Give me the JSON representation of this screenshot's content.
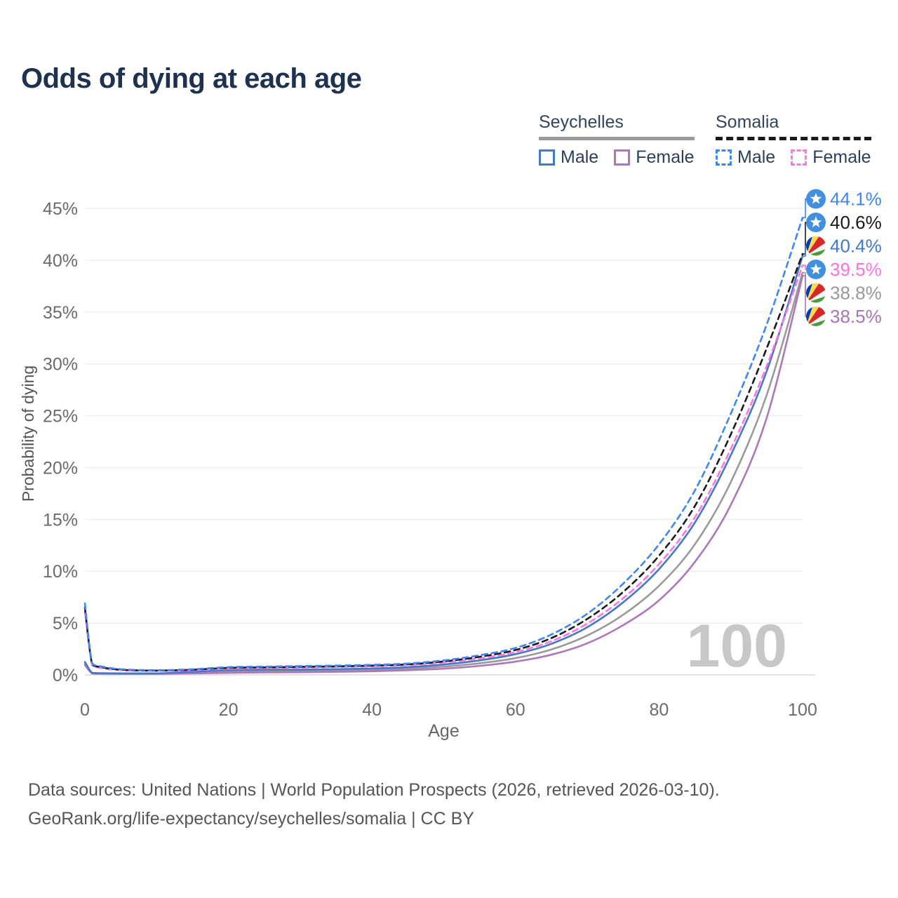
{
  "title": "Odds of dying at each age",
  "legend": {
    "groups": [
      {
        "name": "Seychelles",
        "line_style": "solid",
        "underline_color": "#9a9a9a",
        "items": [
          {
            "label": "Male",
            "color": "#4579c8"
          },
          {
            "label": "Female",
            "color": "#ad76bd"
          }
        ]
      },
      {
        "name": "Somalia",
        "line_style": "dashed",
        "underline_color": "#1a1a1a",
        "items": [
          {
            "label": "Male",
            "color": "#3d87f5"
          },
          {
            "label": "Female",
            "color": "#ff75e3"
          }
        ]
      }
    ]
  },
  "chart_data": {
    "type": "line",
    "title": "Odds of dying at each age",
    "xlabel": "Age",
    "ylabel": "Probability of dying",
    "xlim": [
      0,
      100
    ],
    "ylim": [
      0,
      47
    ],
    "xticks": [
      0,
      20,
      40,
      60,
      80,
      100
    ],
    "yticks": [
      0,
      5,
      10,
      15,
      20,
      25,
      30,
      35,
      40,
      45
    ],
    "ytick_suffix": "%",
    "grid": true,
    "legend_position": "top-right",
    "watermark": "100",
    "x": [
      0,
      1,
      2,
      5,
      10,
      15,
      20,
      25,
      30,
      35,
      40,
      45,
      50,
      55,
      60,
      65,
      70,
      75,
      80,
      85,
      90,
      95,
      100
    ],
    "series": [
      {
        "name": "Seychelles Both sexes",
        "country": "Seychelles",
        "sex": "both",
        "color": "#9a9a9a",
        "dash": "none",
        "values": [
          1.1,
          0.17,
          0.14,
          0.12,
          0.12,
          0.22,
          0.35,
          0.38,
          0.39,
          0.43,
          0.49,
          0.6,
          0.8,
          1.12,
          1.62,
          2.45,
          3.8,
          5.8,
          8.6,
          12.6,
          18.6,
          27.0,
          38.8
        ]
      },
      {
        "name": "Seychelles Female",
        "country": "Seychelles",
        "sex": "female",
        "color": "#ad76bd",
        "dash": "none",
        "values": [
          0.95,
          0.14,
          0.11,
          0.1,
          0.1,
          0.15,
          0.2,
          0.24,
          0.26,
          0.3,
          0.35,
          0.45,
          0.6,
          0.87,
          1.28,
          1.95,
          3.05,
          4.8,
          7.2,
          10.9,
          16.4,
          24.8,
          38.5
        ]
      },
      {
        "name": "Seychelles Male",
        "country": "Seychelles",
        "sex": "male",
        "color": "#4579c8",
        "dash": "none",
        "values": [
          1.25,
          0.2,
          0.17,
          0.15,
          0.15,
          0.3,
          0.45,
          0.5,
          0.5,
          0.55,
          0.62,
          0.75,
          1.0,
          1.4,
          2.0,
          3.0,
          4.6,
          7.0,
          10.2,
          14.7,
          21.2,
          29.3,
          40.4
        ]
      },
      {
        "name": "Somalia Female",
        "country": "Somalia",
        "sex": "female",
        "color": "#ff75e3",
        "dash": "8 6",
        "values": [
          6.1,
          0.95,
          0.7,
          0.46,
          0.4,
          0.45,
          0.6,
          0.65,
          0.7,
          0.76,
          0.83,
          0.95,
          1.2,
          1.6,
          2.2,
          3.25,
          4.95,
          7.4,
          10.7,
          15.2,
          21.8,
          29.8,
          39.5
        ]
      },
      {
        "name": "Somalia Both sexes",
        "country": "Somalia",
        "sex": "both",
        "color": "#1a1a1a",
        "dash": "8 6",
        "values": [
          6.5,
          1.05,
          0.78,
          0.5,
          0.42,
          0.5,
          0.68,
          0.73,
          0.78,
          0.83,
          0.9,
          1.02,
          1.3,
          1.75,
          2.4,
          3.55,
          5.4,
          8.0,
          11.5,
          16.3,
          23.2,
          31.5,
          40.6
        ]
      },
      {
        "name": "Somalia Male",
        "country": "Somalia",
        "sex": "male",
        "color": "#3d87f5",
        "dash": "8 6",
        "values": [
          6.9,
          1.15,
          0.85,
          0.55,
          0.45,
          0.55,
          0.75,
          0.8,
          0.85,
          0.9,
          0.97,
          1.1,
          1.4,
          1.9,
          2.6,
          3.9,
          5.9,
          8.8,
          12.6,
          17.8,
          25.2,
          33.8,
          44.1
        ]
      }
    ],
    "end_labels": [
      {
        "flag": "somalia",
        "series": "Somalia Male",
        "value": "44.1%",
        "color": "#3d87f5"
      },
      {
        "flag": "somalia",
        "series": "Somalia Both sexes",
        "value": "40.6%",
        "color": "#1a1a1a"
      },
      {
        "flag": "seychelles",
        "series": "Seychelles Male",
        "value": "40.4%",
        "color": "#3f78cd"
      },
      {
        "flag": "somalia",
        "series": "Somalia Female",
        "value": "39.5%",
        "color": "#ff70e2"
      },
      {
        "flag": "seychelles",
        "series": "Seychelles Both sexes",
        "value": "38.8%",
        "color": "#999999"
      },
      {
        "flag": "seychelles",
        "series": "Seychelles Female",
        "value": "38.5%",
        "color": "#a973bd"
      }
    ]
  },
  "footer": {
    "line1": "Data sources: United Nations | World Population Prospects (2026, retrieved 2026-03-10).",
    "line2": "GeoRank.org/life-expectancy/seychelles/somalia | CC BY"
  }
}
